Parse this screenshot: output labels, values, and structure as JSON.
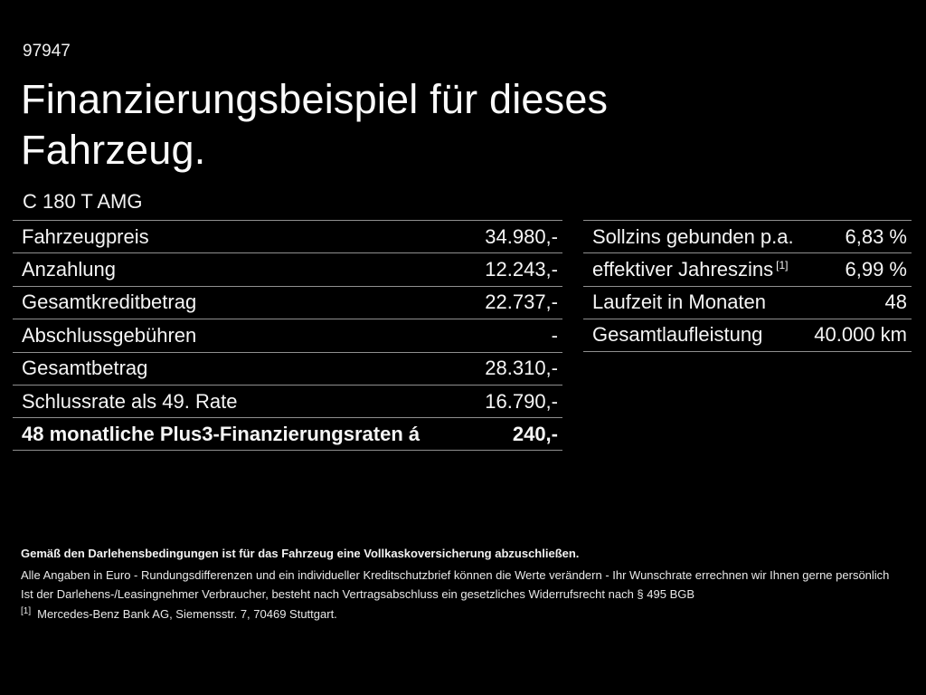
{
  "page": {
    "doc_number": "97947",
    "title_line1": "Finanzierungsbeispiel für dieses",
    "title_line2": "Fahrzeug.",
    "vehicle_model": "C 180 T AMG"
  },
  "left_table": {
    "rows": [
      {
        "label": "Fahrzeugpreis",
        "value": "34.980,-",
        "bold": false
      },
      {
        "label": "Anzahlung",
        "value": "12.243,-",
        "bold": false
      },
      {
        "label": "Gesamtkreditbetrag",
        "value": "22.737,-",
        "bold": false
      },
      {
        "label": "Abschlussgebühren",
        "value": "-",
        "bold": false
      },
      {
        "label": "Gesamtbetrag",
        "value": "28.310,-",
        "bold": false
      },
      {
        "label": "Schlussrate als 49. Rate",
        "value": "16.790,-",
        "bold": false
      },
      {
        "label": "48 monatliche Plus3-Finanzierungsraten á",
        "value": "240,-",
        "bold": true
      }
    ]
  },
  "right_table": {
    "rows": [
      {
        "label": "Sollzins gebunden p.a.",
        "value": "6,83 %",
        "bold": false
      },
      {
        "label": "effektiver Jahreszins",
        "label_superscript": "[1]",
        "value": "6,99 %",
        "bold": false
      },
      {
        "label": "Laufzeit in Monaten",
        "value": "48",
        "bold": false
      },
      {
        "label": "Gesamtlaufleistung",
        "value": "40.000 km",
        "bold": false
      }
    ]
  },
  "footer": {
    "insurance_note": "Gemäß den Darlehensbedingungen ist für das Fahrzeug eine Vollkaskoversicherung abzuschließen.",
    "note_line1": "Alle Angaben in Euro - Rundungsdifferenzen und ein individueller Kreditschutzbrief können die Werte verändern - Ihr Wunschrate errechnen wir Ihnen gerne persönlich",
    "note_line2": "Ist der Darlehens-/Leasingnehmer Verbraucher, besteht nach Vertragsabschluss ein gesetzliches Widerrufsrecht nach § 495 BGB",
    "footnote_marker": "[1]",
    "footnote_text": "Mercedes-Benz Bank AG, Siemensstr. 7, 70469 Stuttgart."
  },
  "colors": {
    "background": "#000000",
    "text": "#f5f5f5",
    "divider": "#8f8f8f"
  }
}
